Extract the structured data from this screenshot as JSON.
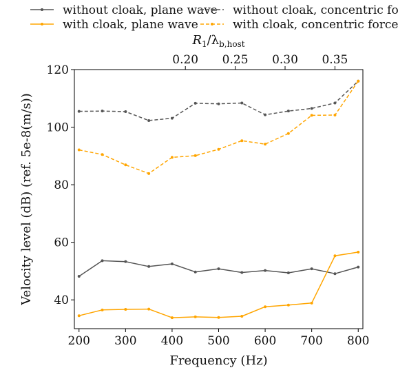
{
  "chart_data": {
    "type": "line",
    "xlabel": "Frequency (Hz)",
    "ylabel": "Velocity level (dB) (ref. 5e-8(m/s))",
    "top_xlabel_main": "R",
    "top_xlabel_sub1": "1",
    "top_xlabel_mid": "/λ",
    "top_xlabel_sub2": "b,host",
    "xlim": [
      190,
      810
    ],
    "ylim": [
      30,
      120
    ],
    "x": [
      200,
      250,
      300,
      350,
      400,
      450,
      500,
      550,
      600,
      650,
      700,
      750,
      800
    ],
    "xticks": [
      200,
      300,
      400,
      500,
      600,
      700,
      800
    ],
    "xtick_labels": [
      "200",
      "300",
      "400",
      "500",
      "600",
      "700",
      "800"
    ],
    "yticks": [
      40,
      60,
      80,
      100,
      120
    ],
    "ytick_labels": [
      "40",
      "60",
      "80",
      "100",
      "120"
    ],
    "top_ticks": [
      0.2,
      0.25,
      0.3,
      0.35
    ],
    "top_tick_labels": [
      "0.20",
      "0.25",
      "0.30",
      "0.35"
    ],
    "top_ratio_per_hz": 0.0004667,
    "legend_placement": "top",
    "grid": false,
    "series": [
      {
        "name": "without cloak, plane wave",
        "color": "#555555",
        "dashed": false,
        "values": [
          48.2,
          53.6,
          53.3,
          51.6,
          52.5,
          49.7,
          50.8,
          49.5,
          50.2,
          49.4,
          50.8,
          49.1,
          51.4
        ]
      },
      {
        "name": "with cloak, plane wave",
        "color": "#ffa500",
        "dashed": false,
        "values": [
          34.5,
          36.5,
          36.7,
          36.8,
          33.8,
          34.1,
          33.9,
          34.3,
          37.6,
          38.2,
          38.9,
          55.3,
          56.6
        ]
      },
      {
        "name": "without cloak, concentric force",
        "color": "#555555",
        "dashed": true,
        "values": [
          105.5,
          105.6,
          105.4,
          102.3,
          103.1,
          108.3,
          108.1,
          108.4,
          104.3,
          105.6,
          106.5,
          108.4,
          116.0
        ]
      },
      {
        "name": "with cloak, concentric force",
        "color": "#ffa500",
        "dashed": true,
        "values": [
          92.1,
          90.5,
          86.9,
          83.9,
          89.5,
          90.1,
          92.3,
          95.3,
          94.1,
          97.8,
          104.1,
          104.2,
          116.0
        ]
      }
    ]
  }
}
